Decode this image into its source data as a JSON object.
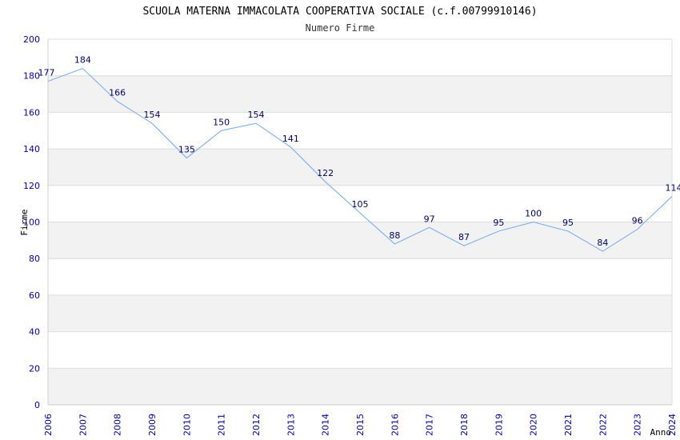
{
  "chart_data": {
    "type": "line",
    "title": "SCUOLA MATERNA IMMACOLATA COOPERATIVA SOCIALE (c.f.00799910146)",
    "subtitle": "Numero Firme",
    "xlabel": "Anno",
    "ylabel": "Firme",
    "categories": [
      "2006",
      "2007",
      "2008",
      "2009",
      "2010",
      "2011",
      "2012",
      "2013",
      "2014",
      "2015",
      "2016",
      "2017",
      "2018",
      "2019",
      "2020",
      "2021",
      "2022",
      "2023",
      "2024"
    ],
    "series": [
      {
        "name": "Numero Firme",
        "values": [
          177,
          184,
          166,
          154,
          135,
          150,
          154,
          141,
          122,
          105,
          88,
          97,
          87,
          95,
          100,
          95,
          84,
          96,
          114
        ]
      }
    ],
    "ylim": [
      0,
      200
    ],
    "yticks": [
      0,
      20,
      40,
      60,
      80,
      100,
      120,
      140,
      160,
      180,
      200
    ],
    "grid": true,
    "colors": {
      "line": "#6fa8f0",
      "band": "#f2f2f2",
      "grid": "#dcdcdc",
      "tick": "#0000aa",
      "label": "#000066"
    }
  }
}
